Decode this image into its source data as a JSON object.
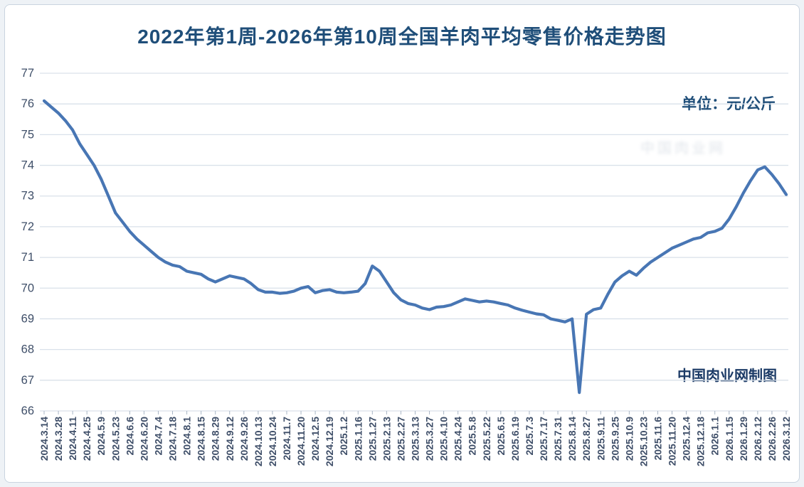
{
  "page": {
    "background": "#eef2f6",
    "card_border": "#c9d4e0"
  },
  "header": {
    "title": "2022年第1周-2026年第10周全国羊肉平均零售价格走势图"
  },
  "annotations": {
    "unit_label": "单位：元/公斤",
    "credit_label": "中国肉业网制图",
    "watermark": "中国肉业网"
  },
  "chart_data": {
    "type": "line",
    "title": "2022年第1周-2026年第10周全国羊肉平均零售价格走势图",
    "ylabel": "元/公斤",
    "xlabel": "",
    "ylim": [
      66,
      77
    ],
    "y_ticks": [
      77,
      76,
      75,
      74,
      73,
      72,
      71,
      70,
      69,
      68,
      67,
      66
    ],
    "grid": true,
    "legend_position": "none",
    "line_color": "#4876b4",
    "grid_color": "#d9e1ea",
    "tick_color": "#a9b6c6",
    "label_color": "#3e4e68",
    "x_tick_labels": [
      "2024.3.14",
      "2024.3.28",
      "2024.4.11",
      "2024.4.25",
      "2024.5.9",
      "2024.5.23",
      "2024.6.6",
      "2024.6.20",
      "2024.7.4",
      "2024.7.18",
      "2024.8.1",
      "2024.8.15",
      "2024.8.29",
      "2024.9.12",
      "2024.9.26",
      "2024.10.13",
      "2024.10.24",
      "2024.11.7",
      "2024.11.20",
      "2024.12.5",
      "2024.12.19",
      "2025.1.2",
      "2025.1.16",
      "2025.1.27",
      "2025.2.13",
      "2025.2.27",
      "2025.3.13",
      "2025.3.27",
      "2025.4.10",
      "2025.4.24",
      "2025.5.8",
      "2025.5.22",
      "2025.6.5",
      "2025.6.19",
      "2025.7.3",
      "2025.7.17",
      "2025.7.31",
      "2025.8.14",
      "2025.8.27",
      "2025.9.11",
      "2025.9.25",
      "2025.10.9",
      "2025.10.23",
      "2025.11.6",
      "2025.11.20",
      "2025.12.4",
      "2025.12.18",
      "2026.1.1",
      "2026.1.15",
      "2026.1.29",
      "2026.2.12",
      "2026.2.26",
      "2026.3.12"
    ],
    "weekly_values": [
      76.1,
      75.9,
      75.7,
      75.45,
      75.15,
      74.7,
      74.35,
      74.0,
      73.55,
      73.0,
      72.45,
      72.15,
      71.85,
      71.6,
      71.4,
      71.2,
      71.0,
      70.85,
      70.75,
      70.7,
      70.55,
      70.5,
      70.45,
      70.3,
      70.2,
      70.3,
      70.4,
      70.35,
      70.3,
      70.15,
      69.95,
      69.87,
      69.87,
      69.83,
      69.85,
      69.9,
      70.0,
      70.05,
      69.85,
      69.92,
      69.95,
      69.87,
      69.85,
      69.87,
      69.9,
      70.15,
      70.72,
      70.55,
      70.2,
      69.85,
      69.62,
      69.5,
      69.45,
      69.35,
      69.3,
      69.38,
      69.4,
      69.45,
      69.55,
      69.65,
      69.6,
      69.55,
      69.58,
      69.55,
      69.5,
      69.45,
      69.35,
      69.28,
      69.22,
      69.16,
      69.13,
      69.0,
      68.95,
      68.9,
      69.0,
      66.6,
      69.15,
      69.3,
      69.35,
      69.8,
      70.2,
      70.4,
      70.55,
      70.42,
      70.65,
      70.85,
      71.0,
      71.15,
      71.3,
      71.4,
      71.5,
      71.6,
      71.65,
      71.8,
      71.85,
      71.95,
      72.25,
      72.65,
      73.1,
      73.5,
      73.85,
      73.95,
      73.7,
      73.4,
      73.05
    ]
  }
}
